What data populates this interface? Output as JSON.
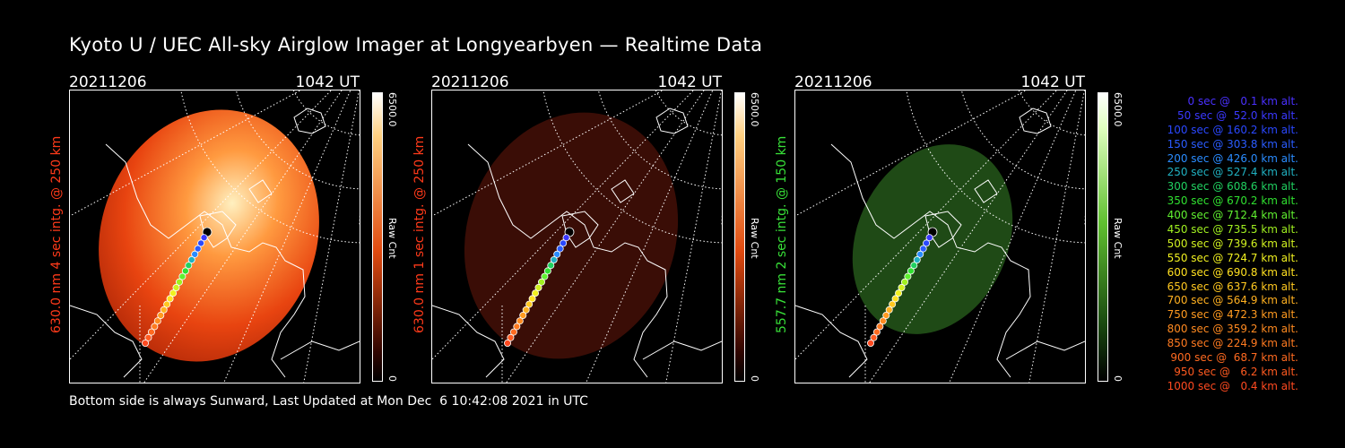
{
  "title": "Kyoto U / UEC All-sky Airglow Imager at Longyearbyen — Realtime Data",
  "footer": "Bottom side is always Sunward, Last Updated at Mon Dec  6 10:42:08 2021 in UTC",
  "panels": [
    {
      "date": "20211206",
      "time": "1042 UT",
      "ylabel": "630.0 nm 4 sec intg. @ 250 km",
      "cbar_max": "6500.0",
      "cbar_min": "0",
      "cbar_label": "Raw Cnt",
      "label_color": "#ff3a1a",
      "image_color": "#e84410",
      "brightness": "bright"
    },
    {
      "date": "20211206",
      "time": "1042 UT",
      "ylabel": "630.0 nm 1 sec intg. @ 250 km",
      "cbar_max": "6500.0",
      "cbar_min": "0",
      "cbar_label": "Raw Cnt",
      "label_color": "#ff3a1a",
      "image_color": "#3a0d06",
      "brightness": "dark"
    },
    {
      "date": "20211206",
      "time": "1042 UT",
      "ylabel": "557.7 nm 2 sec intg. @ 150 km",
      "cbar_max": "6500.0",
      "cbar_min": "0",
      "cbar_label": "Raw Cnt",
      "label_color": "#38e038",
      "image_color": "#1f4a16",
      "brightness": "dim"
    }
  ],
  "legend": [
    {
      "text": "   0 sec @   0.1 km alt.",
      "color": "#4a30ff"
    },
    {
      "text": "  50 sec @  52.0 km alt.",
      "color": "#3a38ff"
    },
    {
      "text": " 100 sec @ 160.2 km alt.",
      "color": "#2a48ff"
    },
    {
      "text": " 150 sec @ 303.8 km alt.",
      "color": "#2a5cff"
    },
    {
      "text": " 200 sec @ 426.0 km alt.",
      "color": "#2a8cff"
    },
    {
      "text": " 250 sec @ 527.4 km alt.",
      "color": "#20b0c0"
    },
    {
      "text": " 300 sec @ 608.6 km alt.",
      "color": "#20d060"
    },
    {
      "text": " 350 sec @ 670.2 km alt.",
      "color": "#30e030"
    },
    {
      "text": " 400 sec @ 712.4 km alt.",
      "color": "#60f030"
    },
    {
      "text": " 450 sec @ 735.5 km alt.",
      "color": "#a0f020"
    },
    {
      "text": " 500 sec @ 739.6 km alt.",
      "color": "#d0f020"
    },
    {
      "text": " 550 sec @ 724.7 km alt.",
      "color": "#f0f020"
    },
    {
      "text": " 600 sec @ 690.8 km alt.",
      "color": "#ffe020"
    },
    {
      "text": " 650 sec @ 637.6 km alt.",
      "color": "#ffc820"
    },
    {
      "text": " 700 sec @ 564.9 km alt.",
      "color": "#ffb020"
    },
    {
      "text": " 750 sec @ 472.3 km alt.",
      "color": "#ff9a20"
    },
    {
      "text": " 800 sec @ 359.2 km alt.",
      "color": "#ff8a20"
    },
    {
      "text": " 850 sec @ 224.9 km alt.",
      "color": "#ff7a20"
    },
    {
      "text": " 900 sec @  68.7 km alt.",
      "color": "#ff6a20"
    },
    {
      "text": " 950 sec @   6.2 km alt.",
      "color": "#ff5a20"
    },
    {
      "text": "1000 sec @   0.4 km alt.",
      "color": "#ff4a20"
    }
  ],
  "colors": {
    "background": "#000000",
    "grid": "#ffffff",
    "coastline": "#ffffff"
  }
}
